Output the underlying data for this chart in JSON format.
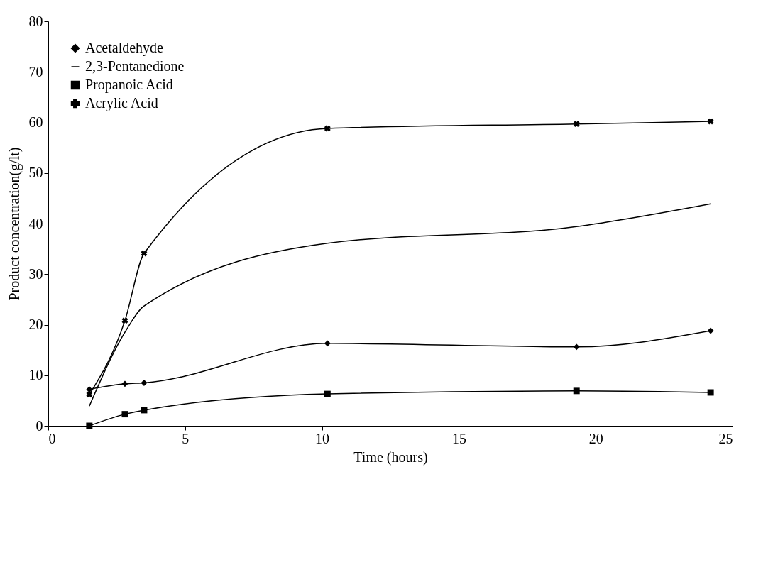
{
  "chart_data": {
    "type": "line",
    "xlabel": "Time (hours)",
    "ylabel": "Product concentration(g/lt)",
    "x": [
      1.5,
      2.8,
      3.5,
      10.2,
      19.3,
      24.2
    ],
    "xlim": [
      0,
      25
    ],
    "xticks": [
      0,
      5,
      10,
      15,
      20,
      25
    ],
    "ylim": [
      0,
      80
    ],
    "yticks": [
      0,
      10,
      20,
      30,
      40,
      50,
      60,
      70,
      80
    ],
    "grid": false,
    "legend": "top left",
    "line_style": "solid",
    "series": [
      {
        "name": "Acetaldehyde",
        "color": "#000000",
        "marker": "diamond",
        "values": [
          7.2,
          8.3,
          8.5,
          16.3,
          15.6,
          18.8
        ]
      },
      {
        "name": "2,3-Pentanedione",
        "color": "#000000",
        "marker": "none",
        "values": [
          3.9,
          18.5,
          23.7,
          36.1,
          39.4,
          43.9
        ]
      },
      {
        "name": "Propanoic Acid",
        "color": "#000000",
        "marker": "square",
        "values": [
          0,
          2.3,
          3.1,
          6.3,
          6.9,
          6.6
        ]
      },
      {
        "name": "Acrylic Acid",
        "color": "#000000",
        "marker": "cross",
        "values": [
          6.2,
          20.8,
          34.1,
          58.8,
          59.7,
          60.2
        ]
      }
    ]
  }
}
